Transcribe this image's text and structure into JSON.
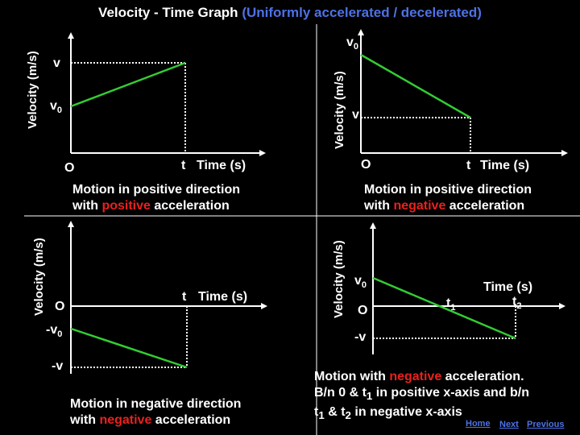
{
  "title": {
    "main": "Velocity - Time Graph",
    "paren": "(Uniformly accelerated / decelerated)"
  },
  "panels": {
    "top_left": {
      "ylabel": "Velocity (m/s)",
      "v_label": "v",
      "v0_label": "v",
      "v0_sub": "0",
      "origin": "O",
      "t_label": "t",
      "xlabel": "Time (s)",
      "caption_line1": "Motion in positive direction",
      "caption_line2_a": "with ",
      "caption_line2_b": "positive",
      "caption_line2_c": " acceleration"
    },
    "top_right": {
      "ylabel": "Velocity (m/s)",
      "v0_label": "v",
      "v0_sub": "0",
      "v_label": "v",
      "origin": "O",
      "t_label": "t",
      "xlabel": "Time (s)",
      "caption_line1": "Motion in positive direction",
      "caption_line2_a": "with ",
      "caption_line2_b": "negative",
      "caption_line2_c": " acceleration"
    },
    "bottom_left": {
      "ylabel": "Velocity (m/s)",
      "origin": "O",
      "neg_v0_label": "-v",
      "neg_v0_sub": "0",
      "neg_v_label": "-v",
      "t_label": "t",
      "xlabel": "Time (s)",
      "caption_line1": "Motion in negative direction",
      "caption_line2_a": "with ",
      "caption_line2_b": "negative",
      "caption_line2_c": " acceleration"
    },
    "bottom_right": {
      "ylabel": "Velocity (m/s)",
      "v0_label": "v",
      "v0_sub": "0",
      "origin": "O",
      "t1_label": "t",
      "t1_sub": "1",
      "xlabel": "Time (s)",
      "t2_label": "t",
      "t2_sub": "2",
      "neg_v_label": "-v",
      "caption_line1_a": "Motion with ",
      "caption_line1_b": "negative",
      "caption_line1_c": " acceleration.",
      "caption_line2_a": "B/n 0 & t",
      "caption_line2_sub": "1",
      "caption_line2_b": " in positive x-axis and b/n",
      "caption_line3_a": "t",
      "caption_line3_sub1": "1",
      "caption_line3_b": " & t",
      "caption_line3_sub2": "2",
      "caption_line3_c": " in negative x-axis"
    }
  },
  "nav": {
    "home": "Home",
    "next": "Next",
    "previous": "Previous"
  },
  "colors": {
    "graph_line": "#33cc33",
    "axis": "#ffffff",
    "dotted": "#ffffff",
    "divider": "#ffffff",
    "highlight_blue": "#4d72e6",
    "highlight_red": "#e8211e"
  }
}
